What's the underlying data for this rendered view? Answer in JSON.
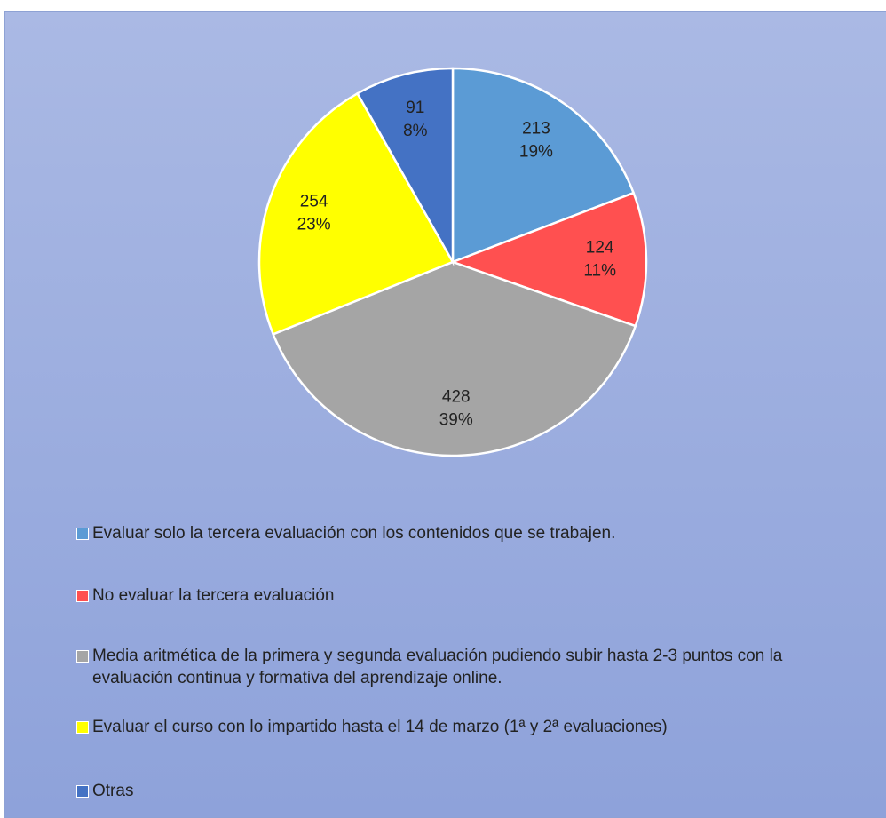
{
  "chart_data": {
    "type": "pie",
    "categories": [
      "Evaluar solo la tercera evaluación con los contenidos que se trabajen.",
      "No evaluar la tercera evaluación",
      "Media aritmética de la primera y segunda evaluación pudiendo subir hasta 2-3 puntos con la evaluación continua y formativa del aprendizaje online.",
      "Evaluar el curso con lo impartido hasta el 14 de marzo (1ª y 2ª evaluaciones)",
      "Otras"
    ],
    "values": [
      213,
      124,
      428,
      254,
      91
    ],
    "percent_labels": [
      "19%",
      "11%",
      "39%",
      "23%",
      "8%"
    ],
    "colors": [
      "#5b9bd5",
      "#ff5050",
      "#a5a5a5",
      "#ffff00",
      "#4472c4"
    ],
    "legend": "bottom"
  }
}
